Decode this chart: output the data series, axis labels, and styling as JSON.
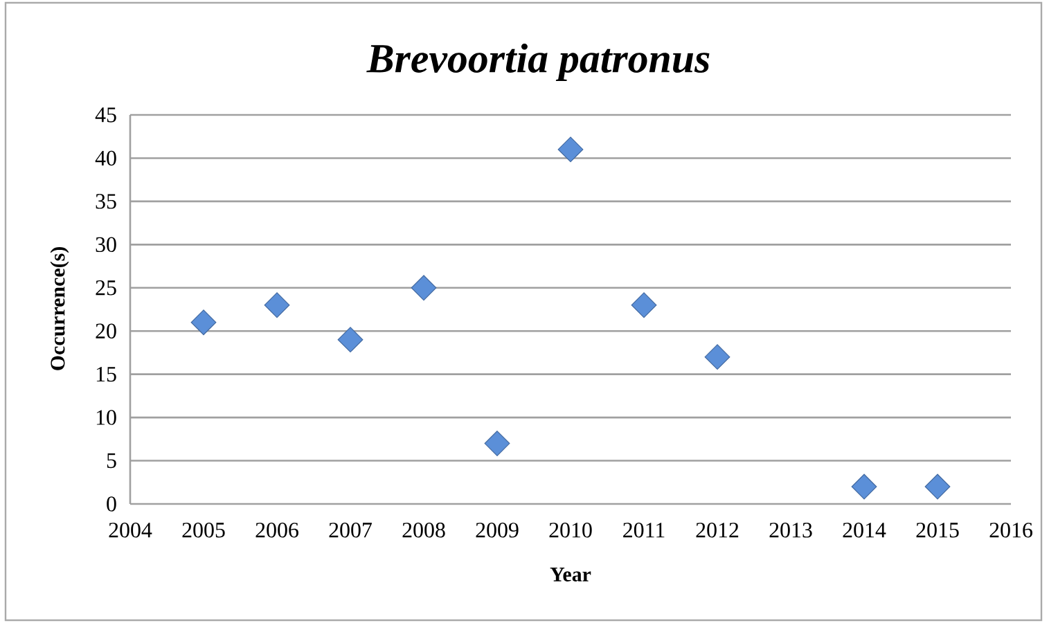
{
  "chart_data": {
    "type": "scatter",
    "title": "Brevoortia patronus",
    "xlabel": "Year",
    "ylabel": "Occurrence(s)",
    "x": [
      2005,
      2006,
      2007,
      2008,
      2009,
      2010,
      2011,
      2012,
      2014,
      2015
    ],
    "values": [
      21,
      23,
      19,
      25,
      7,
      41,
      23,
      17,
      2,
      2
    ],
    "color": "#5b8fd8",
    "marker": "diamond",
    "grid": "y",
    "xlim": [
      2004,
      2016
    ],
    "xticks": [
      2004,
      2005,
      2006,
      2007,
      2008,
      2009,
      2010,
      2011,
      2012,
      2013,
      2014,
      2015,
      2016
    ],
    "ylim": [
      0,
      45
    ],
    "yticks": [
      0,
      5,
      10,
      15,
      20,
      25,
      30,
      35,
      40,
      45
    ]
  }
}
